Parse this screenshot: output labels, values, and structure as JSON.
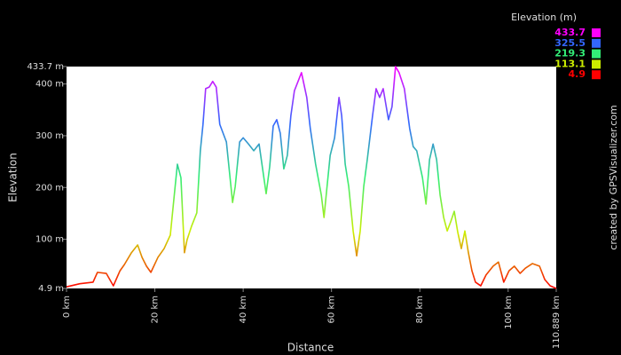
{
  "chart_data": {
    "type": "line",
    "xlabel": "Distance",
    "ylabel": "Elevation",
    "credit": "created by GPSVisualizer.com",
    "xlim": [
      0,
      110.889
    ],
    "ylim": [
      4.9,
      433.7
    ],
    "xticks": [
      {
        "value": 0,
        "label": "0 km"
      },
      {
        "value": 20,
        "label": "20 km"
      },
      {
        "value": 40,
        "label": "40 km"
      },
      {
        "value": 60,
        "label": "60 km"
      },
      {
        "value": 80,
        "label": "80 km"
      },
      {
        "value": 100,
        "label": "100 km"
      },
      {
        "value": 110.889,
        "label": "110.889 km"
      }
    ],
    "yticks": [
      {
        "value": 4.9,
        "label": "4.9 m"
      },
      {
        "value": 100,
        "label": "100 m"
      },
      {
        "value": 200,
        "label": "200 m"
      },
      {
        "value": 300,
        "label": "300 m"
      },
      {
        "value": 400,
        "label": "400 m"
      },
      {
        "value": 433.7,
        "label": "433.7 m"
      }
    ],
    "legend": {
      "title": "Elevation (m)",
      "entries": [
        {
          "value": 433.7,
          "color": "#ff00ff"
        },
        {
          "value": 325.5,
          "color": "#3366ff"
        },
        {
          "value": 219.3,
          "color": "#33ee77"
        },
        {
          "value": 113.1,
          "color": "#ccee00"
        },
        {
          "value": 4.9,
          "color": "#ff0000"
        }
      ]
    },
    "x": [
      0,
      3.0,
      6.0,
      7.0,
      9.0,
      10.6,
      12.1,
      13.1,
      14.7,
      16.1,
      17.1,
      18.1,
      19.1,
      20.7,
      22.1,
      23.5,
      24.5,
      25.1,
      25.9,
      26.7,
      27.3,
      28.3,
      29.5,
      30.3,
      30.9,
      31.5,
      32.3,
      33.1,
      33.9,
      34.7,
      36.2,
      37.6,
      38.2,
      39.2,
      40.0,
      41.2,
      42.4,
      43.6,
      44.4,
      45.2,
      46.0,
      46.8,
      47.6,
      48.4,
      49.2,
      50.0,
      50.8,
      51.6,
      53.2,
      54.4,
      55.2,
      56.4,
      57.7,
      58.3,
      58.9,
      59.7,
      60.7,
      61.7,
      62.3,
      63.1,
      63.9,
      64.9,
      65.7,
      66.5,
      67.3,
      68.1,
      69.3,
      70.1,
      70.9,
      71.7,
      72.9,
      73.7,
      74.5,
      75.3,
      76.5,
      77.7,
      78.5,
      79.3,
      80.6,
      81.4,
      82.2,
      83.0,
      83.8,
      84.6,
      85.4,
      86.2,
      87.0,
      87.8,
      88.6,
      89.4,
      90.2,
      91.0,
      91.8,
      92.6,
      93.8,
      95.0,
      96.6,
      97.8,
      99.0,
      100.2,
      101.4,
      102.7,
      103.9,
      105.5,
      107.1,
      108.3,
      109.5,
      110.889
    ],
    "values": [
      8,
      14,
      17,
      36,
      34,
      10,
      39,
      51,
      74,
      89,
      65,
      48,
      36,
      65,
      82,
      108,
      194,
      245,
      219,
      74,
      99,
      125,
      151,
      271,
      322,
      391,
      394,
      405,
      394,
      322,
      288,
      171,
      202,
      288,
      296,
      284,
      271,
      284,
      236,
      188,
      240,
      319,
      331,
      305,
      236,
      262,
      339,
      387,
      422,
      374,
      314,
      245,
      185,
      142,
      194,
      262,
      296,
      374,
      339,
      245,
      202,
      116,
      68,
      116,
      202,
      254,
      339,
      391,
      374,
      391,
      331,
      356,
      433.7,
      422,
      391,
      314,
      279,
      271,
      219,
      168,
      254,
      284,
      254,
      185,
      142,
      116,
      134,
      154,
      113,
      82,
      116,
      74,
      39,
      17,
      10,
      31,
      48,
      56,
      17,
      39,
      48,
      34,
      44,
      53,
      48,
      22,
      10,
      4.9
    ]
  }
}
